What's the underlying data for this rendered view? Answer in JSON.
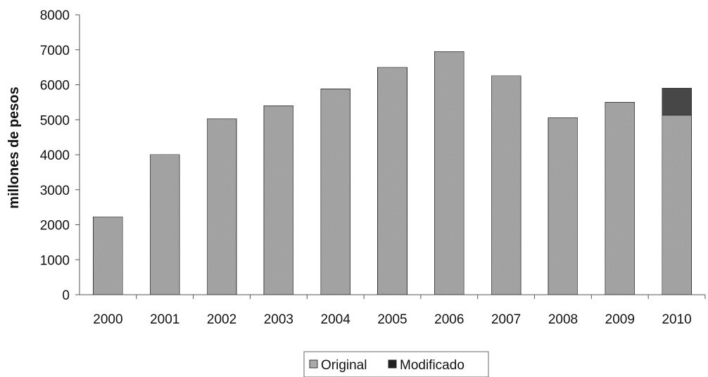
{
  "chart_data": {
    "type": "bar",
    "stacked": true,
    "categories": [
      "2000",
      "2001",
      "2002",
      "2003",
      "2004",
      "2005",
      "2006",
      "2007",
      "2008",
      "2009",
      "2010"
    ],
    "series": [
      {
        "name": "Original",
        "values": [
          2230,
          4010,
          5030,
          5400,
          5880,
          6500,
          6950,
          6260,
          5060,
          5500,
          5130
        ]
      },
      {
        "name": "Modificado",
        "values": [
          0,
          0,
          0,
          0,
          0,
          0,
          0,
          0,
          0,
          0,
          770
        ]
      }
    ],
    "title": "",
    "xlabel": "",
    "ylabel": "millones de pesos",
    "ylim": [
      0,
      8000
    ],
    "yticks": [
      0,
      1000,
      2000,
      3000,
      4000,
      5000,
      6000,
      7000,
      8000
    ],
    "grid": false,
    "legend_position": "bottom",
    "colors": {
      "original": "#a9a9a9",
      "modificado": "#4a4a4a",
      "axis": "#555555"
    }
  }
}
